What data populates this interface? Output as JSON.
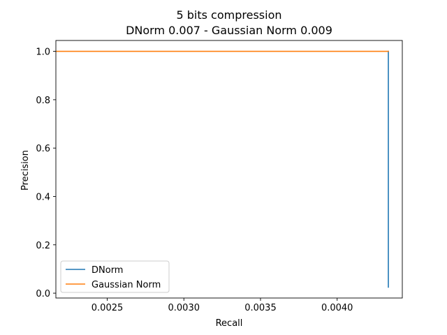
{
  "chart_data": {
    "type": "line",
    "title": "5 bits compression",
    "subtitle": "DNorm 0.007 - Gaussian Norm 0.009",
    "xlabel": "Recall",
    "ylabel": "Precision",
    "xlim": [
      0.002165,
      0.004425
    ],
    "ylim": [
      -0.02,
      1.045
    ],
    "xticks": [
      0.0025,
      0.003,
      0.0035,
      0.004
    ],
    "xtick_labels": [
      "0.0025",
      "0.0030",
      "0.0035",
      "0.0040"
    ],
    "yticks": [
      0.0,
      0.2,
      0.4,
      0.6,
      0.8,
      1.0
    ],
    "ytick_labels": [
      "0.0",
      "0.2",
      "0.4",
      "0.6",
      "0.8",
      "1.0"
    ],
    "grid": false,
    "legend_position": "lower-left",
    "series": [
      {
        "name": "DNorm",
        "color": "#1f77b4",
        "x": [
          0.004334,
          0.004334
        ],
        "y": [
          1.0,
          0.025
        ]
      },
      {
        "name": "Gaussian Norm",
        "color": "#ff7f0e",
        "x": [
          0.002167,
          0.004334
        ],
        "y": [
          1.0,
          1.0
        ]
      }
    ]
  }
}
